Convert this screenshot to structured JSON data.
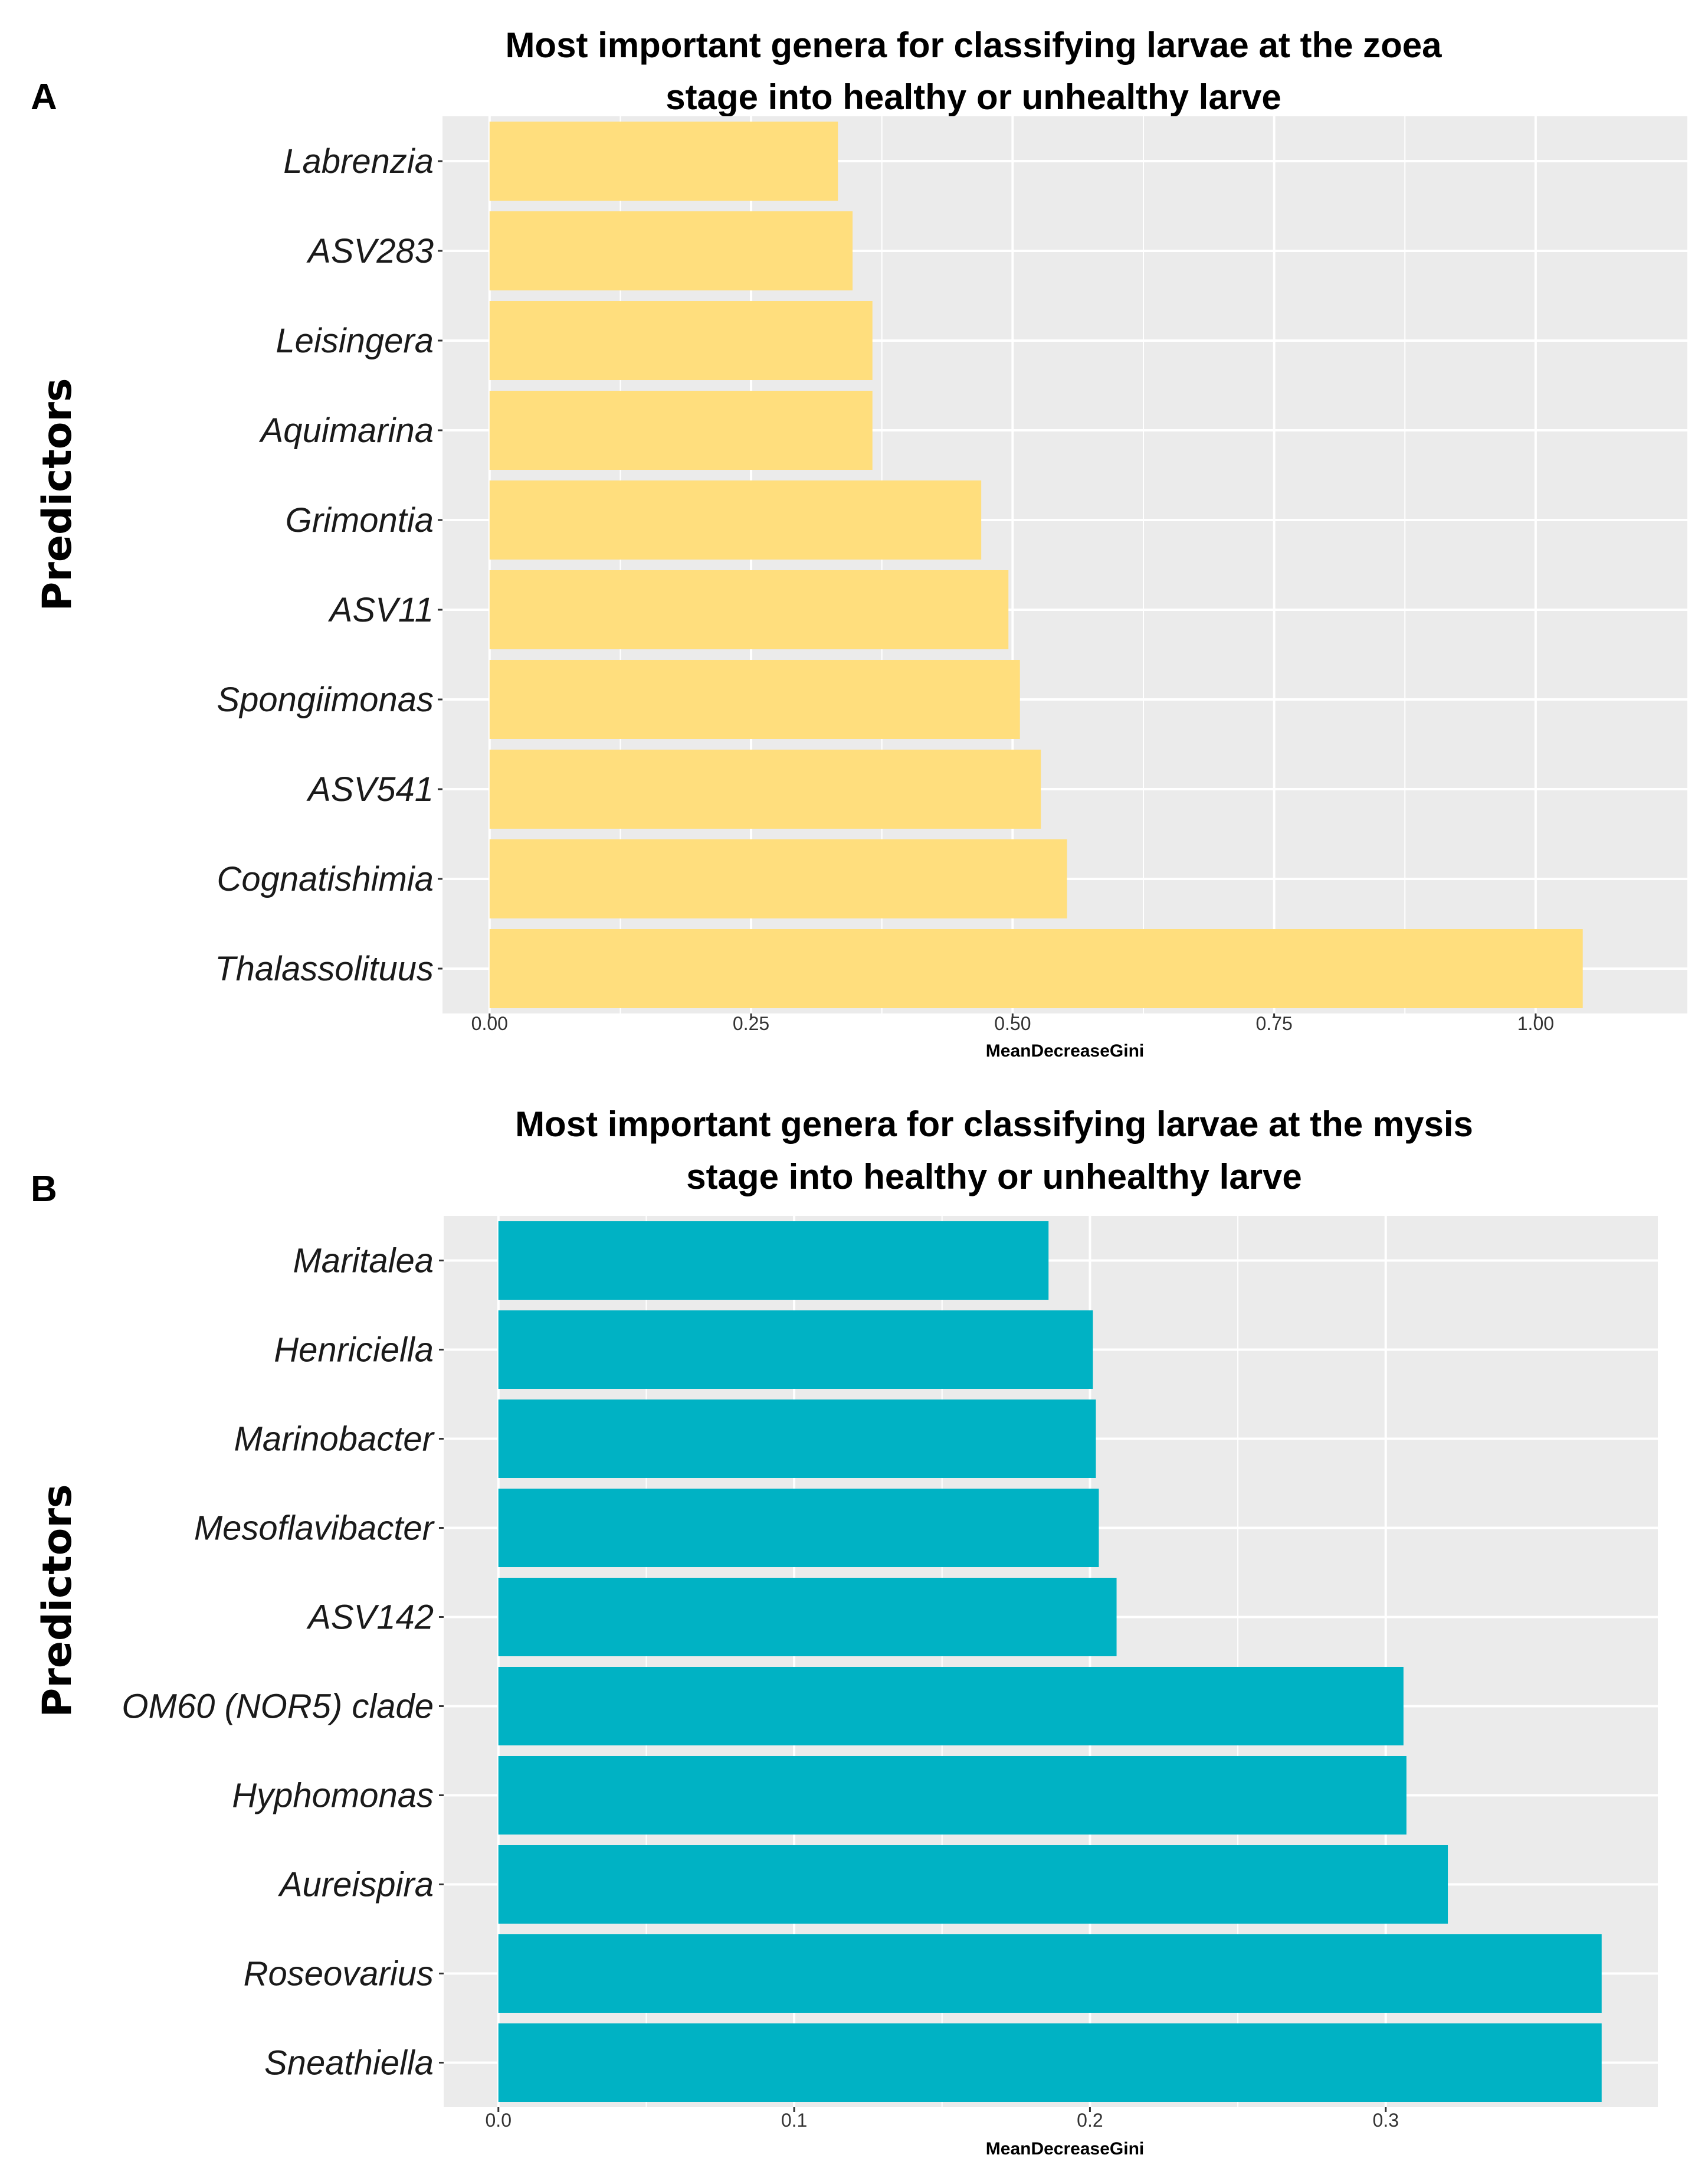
{
  "chart_data": [
    {
      "panel": "A",
      "type": "bar",
      "orientation": "horizontal",
      "title": [
        "Most important genera for classifying larvae at the zoea",
        "stage  into healthy or unhealthy larve"
      ],
      "xlabel": "MeanDecreaseGini",
      "ylabel": "Predictors",
      "categories": [
        "Labrenzia",
        "ASV283",
        "Leisingera",
        "Aquimarina",
        "Grimontia",
        "ASV11",
        "Spongiimonas",
        "ASV541",
        "Cognatishimia",
        "Thalassolituus"
      ],
      "values": [
        0.333,
        0.347,
        0.366,
        0.366,
        0.47,
        0.496,
        0.507,
        0.527,
        0.552,
        1.045
      ],
      "xticks": [
        0,
        0.25,
        0.5,
        0.75,
        1.0
      ],
      "xtick_labels": [
        "0.00",
        "0.25",
        "0.50",
        "0.75",
        "1.00"
      ],
      "xlim": [
        -0.045,
        1.145
      ],
      "bar_color": "#FFDE7D",
      "grid": true
    },
    {
      "panel": "B",
      "type": "bar",
      "orientation": "horizontal",
      "title": [
        "Most important genera for classifying larvae at the mysis",
        "stage  into healthy or unhealthy larve"
      ],
      "xlabel": "MeanDecreaseGini",
      "ylabel": "Predictors",
      "categories": [
        "Maritalea",
        "Henriciella",
        "Marinobacter",
        "Mesoflavibacter ",
        "ASV142",
        "OM60 (NOR5) clade",
        "Hyphomonas",
        "Aureispira",
        "Roseovarius",
        "Sneathiella"
      ],
      "values": [
        0.186,
        0.201,
        0.202,
        0.203,
        0.209,
        0.306,
        0.307,
        0.321,
        0.373,
        0.373
      ],
      "xticks": [
        0,
        0.1,
        0.2,
        0.3
      ],
      "xtick_labels": [
        "0.0",
        "0.1",
        "0.2",
        "0.3"
      ],
      "xlim": [
        -0.0185,
        0.392
      ],
      "bar_color": "#00B2C4",
      "grid": true
    }
  ],
  "panel_bg": "#EBEBEB",
  "grid_color": "#FFFFFF"
}
